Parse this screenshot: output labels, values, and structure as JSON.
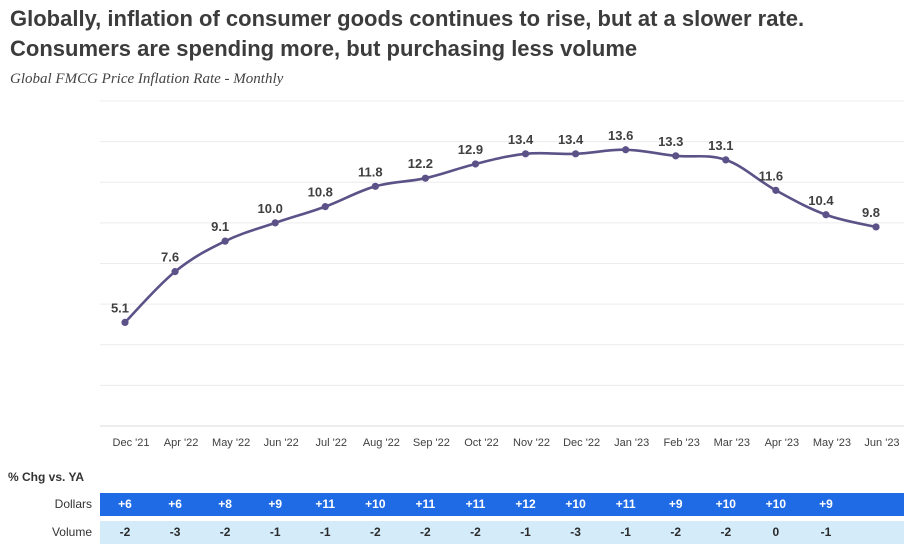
{
  "headline": {
    "line1": "Globally, inflation of consumer goods continues to rise, but at a slower rate.",
    "line2": "Consumers are spending more, but purchasing less volume"
  },
  "subtitle": "Global FMCG Price Inflation Rate - Monthly",
  "colors": {
    "line": "#5c5288",
    "gridline": "#ececec",
    "dollars_bar": "#1f6ae5",
    "volume_bar": "#d4ecfa"
  },
  "chart_data": {
    "type": "line",
    "categories": [
      "Dec '21",
      "Apr '22",
      "May '22",
      "Jun '22",
      "Jul '22",
      "Aug '22",
      "Sep '22",
      "Oct '22",
      "Nov '22",
      "Dec '22",
      "Jan '23",
      "Feb '23",
      "Mar '23",
      "Apr '23",
      "May '23",
      "Jun '23"
    ],
    "values": [
      5.1,
      7.6,
      9.1,
      10.0,
      10.8,
      11.8,
      12.2,
      12.9,
      13.4,
      13.4,
      13.6,
      13.3,
      13.1,
      11.6,
      10.4,
      9.8
    ],
    "labels": [
      "5.1",
      "7.6",
      "9.1",
      "10.0",
      "10.8",
      "11.8",
      "12.2",
      "12.9",
      "13.4",
      "13.4",
      "13.6",
      "13.3",
      "13.1",
      "11.6",
      "10.4",
      "9.8"
    ],
    "ylim": [
      0,
      16
    ],
    "grid": true,
    "smooth": true,
    "xlabel": "",
    "ylabel": ""
  },
  "table": {
    "title": "% Chg vs. YA",
    "rows": [
      {
        "label": "Dollars",
        "values": [
          "+6",
          "+6",
          "+8",
          "+9",
          "+11",
          "+10",
          "+11",
          "+11",
          "+12",
          "+10",
          "+11",
          "+9",
          "+10",
          "+10",
          "+9"
        ]
      },
      {
        "label": "Volume",
        "values": [
          "-2",
          "-3",
          "-2",
          "-1",
          "-1",
          "-2",
          "-2",
          "-2",
          "-1",
          "-3",
          "-1",
          "-2",
          "-2",
          "0",
          "-1"
        ]
      }
    ]
  }
}
